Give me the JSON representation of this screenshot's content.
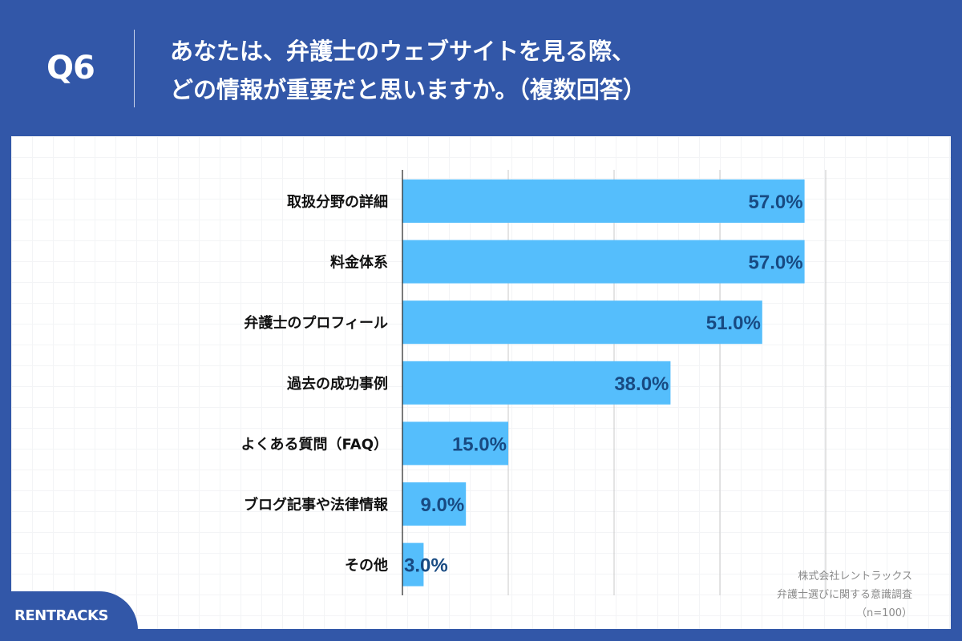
{
  "header": {
    "question_number": "Q6",
    "title_line1": "あなたは、弁護士のウェブサイトを見る際、",
    "title_line2": "どの情報が重要だと思いますか。（複数回答）"
  },
  "chart_data": {
    "type": "bar",
    "orientation": "horizontal",
    "categories": [
      "取扱分野の詳細",
      "料金体系",
      "弁護士のプロフィール",
      "過去の成功事例",
      "よくある質問（FAQ）",
      "ブログ記事や法律情報",
      "その他"
    ],
    "values": [
      57.0,
      57.0,
      51.0,
      38.0,
      15.0,
      9.0,
      3.0
    ],
    "data_labels": [
      "57.0%",
      "57.0%",
      "51.0%",
      "38.0%",
      "15.0%",
      "9.0%",
      "3.0%"
    ],
    "xlim": [
      0,
      60
    ],
    "grid_ticks": [
      15,
      30,
      45,
      60
    ],
    "grid": true,
    "bar_color": "#55befc",
    "label_color": "#184a82"
  },
  "footer": {
    "logo": "RENTRACKS",
    "source_line1": "株式会社レントラックス",
    "source_line2": "弁護士選びに関する意識調査",
    "sample_size": "（n=100）"
  },
  "colors": {
    "background": "#3257a8",
    "panel": "#ffffff"
  }
}
